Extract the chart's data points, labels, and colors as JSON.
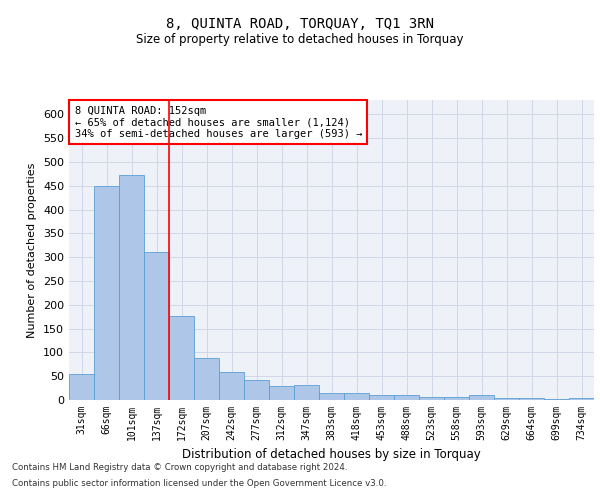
{
  "title": "8, QUINTA ROAD, TORQUAY, TQ1 3RN",
  "subtitle": "Size of property relative to detached houses in Torquay",
  "xlabel": "Distribution of detached houses by size in Torquay",
  "ylabel": "Number of detached properties",
  "categories": [
    "31sqm",
    "66sqm",
    "101sqm",
    "137sqm",
    "172sqm",
    "207sqm",
    "242sqm",
    "277sqm",
    "312sqm",
    "347sqm",
    "383sqm",
    "418sqm",
    "453sqm",
    "488sqm",
    "523sqm",
    "558sqm",
    "593sqm",
    "629sqm",
    "664sqm",
    "699sqm",
    "734sqm"
  ],
  "values": [
    54,
    450,
    472,
    311,
    176,
    89,
    58,
    43,
    30,
    32,
    15,
    15,
    10,
    10,
    7,
    7,
    10,
    4,
    4,
    2,
    5
  ],
  "bar_color": "#aec6e8",
  "bar_edge_color": "#5a9fd4",
  "red_line_x": 3.5,
  "annotation_text": "8 QUINTA ROAD: 152sqm\n← 65% of detached houses are smaller (1,124)\n34% of semi-detached houses are larger (593) →",
  "annotation_box_color": "white",
  "annotation_box_edge_color": "red",
  "grid_color": "#d0d8e8",
  "background_color": "#eef2f8",
  "footer_line1": "Contains HM Land Registry data © Crown copyright and database right 2024.",
  "footer_line2": "Contains public sector information licensed under the Open Government Licence v3.0.",
  "ylim": [
    0,
    630
  ],
  "yticks": [
    0,
    50,
    100,
    150,
    200,
    250,
    300,
    350,
    400,
    450,
    500,
    550,
    600
  ]
}
